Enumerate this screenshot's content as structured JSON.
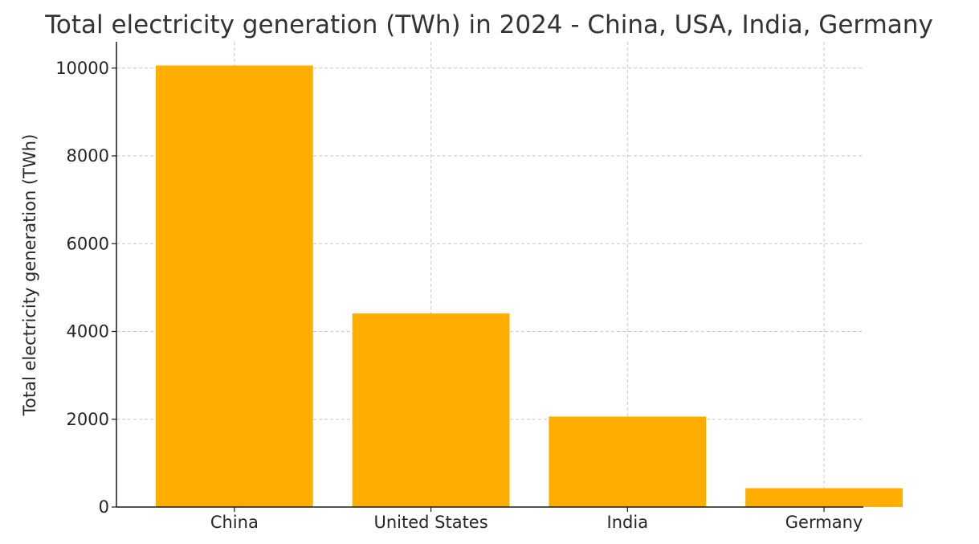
{
  "chart_data": {
    "type": "bar",
    "title": "Total electricity generation (TWh) in 2024 - China, USA, India, Germany",
    "xlabel": "",
    "ylabel": "Total electricity generation (TWh)",
    "categories": [
      "China",
      "United States",
      "India",
      "Germany"
    ],
    "values": [
      10060,
      4410,
      2060,
      430
    ],
    "ylim": [
      0,
      10600
    ],
    "yticks": [
      0,
      2000,
      4000,
      6000,
      8000,
      10000
    ],
    "ytick_labels": [
      "0",
      "2000",
      "4000",
      "6000",
      "8000",
      "10000"
    ],
    "grid": true,
    "bar_color": "#FFAE00"
  }
}
